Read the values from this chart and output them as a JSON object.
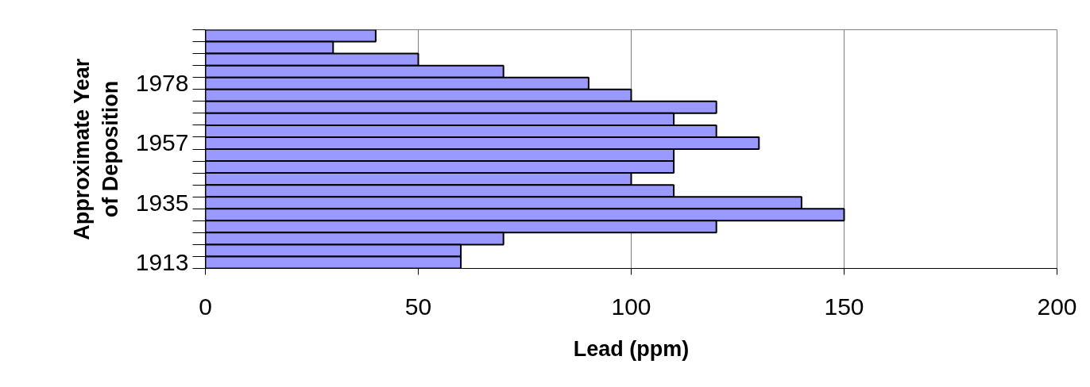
{
  "chart_data": {
    "type": "bar",
    "orientation": "horizontal",
    "xlabel": "Lead (ppm)",
    "ylabel": "Approximate Year\nof Deposition",
    "categories": [
      null,
      null,
      null,
      null,
      "1978",
      null,
      null,
      null,
      null,
      "1957",
      null,
      null,
      null,
      null,
      "1935",
      null,
      null,
      null,
      null,
      "1913"
    ],
    "values": [
      40,
      30,
      50,
      70,
      90,
      100,
      120,
      110,
      120,
      130,
      110,
      110,
      100,
      110,
      140,
      150,
      120,
      70,
      60,
      60
    ],
    "color": "#9999ff",
    "xlim": [
      0,
      200
    ],
    "xticks": [
      0,
      50,
      100,
      150,
      200
    ],
    "grid": "x"
  }
}
